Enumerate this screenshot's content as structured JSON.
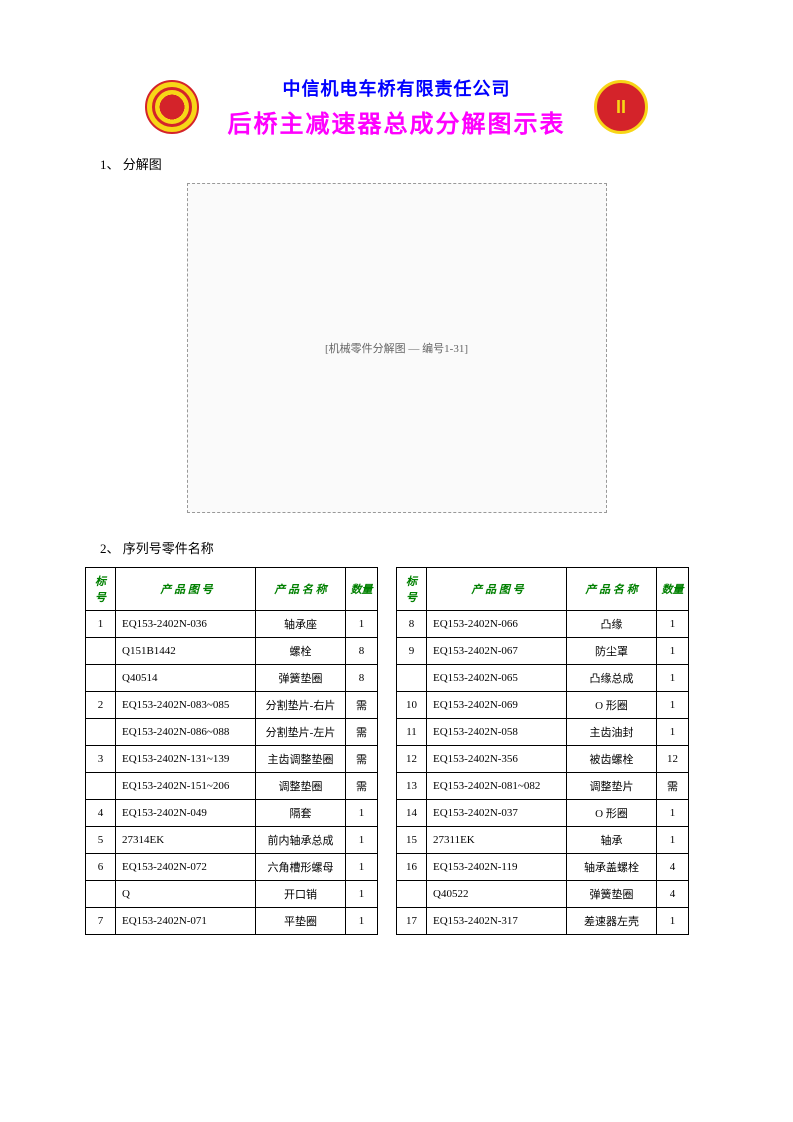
{
  "header": {
    "company": "中信机电车桥有限责任公司",
    "title": "后桥主减速器总成分解图示表"
  },
  "sections": {
    "s1": "1、 分解图",
    "s2": "2、 序列号零件名称",
    "diagram_note": "[机械零件分解图 — 编号1-31]"
  },
  "table": {
    "headers": {
      "num": "标号",
      "code": "产 品 图 号",
      "name": "产 品 名 称",
      "qty": "数量"
    },
    "left": [
      {
        "n": "1",
        "c": "EQ153-2402N-036",
        "m": "轴承座",
        "q": "1"
      },
      {
        "n": "",
        "c": "Q151B1442",
        "m": "螺栓",
        "q": "8"
      },
      {
        "n": "",
        "c": "Q40514",
        "m": "弹簧垫圈",
        "q": "8"
      },
      {
        "n": "2",
        "c": "EQ153-2402N-083~085",
        "m": "分割垫片-右片",
        "q": "需"
      },
      {
        "n": "",
        "c": "EQ153-2402N-086~088",
        "m": "分割垫片-左片",
        "q": "需"
      },
      {
        "n": "3",
        "c": "EQ153-2402N-131~139",
        "m": "主齿调整垫圈",
        "q": "需"
      },
      {
        "n": "",
        "c": "EQ153-2402N-151~206",
        "m": "调整垫圈",
        "q": "需"
      },
      {
        "n": "4",
        "c": "EQ153-2402N-049",
        "m": "隔套",
        "q": "1"
      },
      {
        "n": "5",
        "c": "27314EK",
        "m": "前内轴承总成",
        "q": "1"
      },
      {
        "n": "6",
        "c": "EQ153-2402N-072",
        "m": "六角槽形螺母",
        "q": "1"
      },
      {
        "n": "",
        "c": "Q",
        "m": "开口销",
        "q": "1"
      },
      {
        "n": "7",
        "c": "EQ153-2402N-071",
        "m": "平垫圈",
        "q": "1"
      }
    ],
    "right": [
      {
        "n": "8",
        "c": "EQ153-2402N-066",
        "m": "凸缘",
        "q": "1"
      },
      {
        "n": "9",
        "c": "EQ153-2402N-067",
        "m": "防尘罩",
        "q": "1"
      },
      {
        "n": "",
        "c": "EQ153-2402N-065",
        "m": "凸缘总成",
        "q": "1"
      },
      {
        "n": "10",
        "c": "EQ153-2402N-069",
        "m": "O 形圈",
        "q": "1"
      },
      {
        "n": "11",
        "c": "EQ153-2402N-058",
        "m": "主齿油封",
        "q": "1"
      },
      {
        "n": "12",
        "c": "EQ153-2402N-356",
        "m": "被齿螺栓",
        "q": "12"
      },
      {
        "n": "13",
        "c": "EQ153-2402N-081~082",
        "m": "调整垫片",
        "q": "需"
      },
      {
        "n": "14",
        "c": "EQ153-2402N-037",
        "m": "O 形圈",
        "q": "1"
      },
      {
        "n": "15",
        "c": "27311EK",
        "m": "轴承",
        "q": "1"
      },
      {
        "n": "16",
        "c": "EQ153-2402N-119",
        "m": "轴承盖螺栓",
        "q": "4"
      },
      {
        "n": "",
        "c": "Q40522",
        "m": "弹簧垫圈",
        "q": "4"
      },
      {
        "n": "17",
        "c": "EQ153-2402N-317",
        "m": "差速器左壳",
        "q": "1"
      }
    ]
  },
  "styling": {
    "company_color": "#0000ff",
    "title_color": "#ff00ff",
    "header_text_color": "#008000",
    "border_color": "#000000",
    "background": "#ffffff",
    "company_fontsize": 18,
    "title_fontsize": 24,
    "body_fontsize": 11
  }
}
